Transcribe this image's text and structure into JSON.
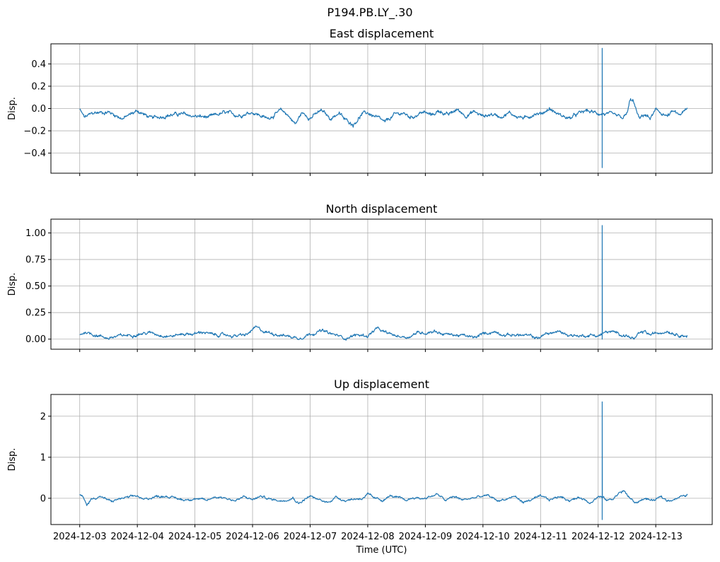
{
  "figure": {
    "suptitle": "P194.PB.LY_.30"
  },
  "chart_data": [
    {
      "type": "line",
      "title": "East displacement",
      "ylabel": "Disp.",
      "xlabel": "",
      "ylim": [
        -0.58,
        0.58
      ],
      "yticks": [
        -0.4,
        -0.2,
        0.0,
        0.2,
        0.4
      ],
      "ytick_labels": [
        "−0.4",
        "−0.2",
        "0.0",
        "0.2",
        "0.4"
      ],
      "show_xtick_labels": false,
      "grid": true,
      "series": [
        {
          "color": "#1f77b4",
          "baseline": [
            [
              0.0,
              -0.01
            ],
            [
              0.08,
              -0.08
            ],
            [
              0.25,
              -0.04
            ],
            [
              0.5,
              -0.03
            ],
            [
              0.75,
              -0.09
            ],
            [
              1.0,
              -0.02
            ],
            [
              1.25,
              -0.09
            ],
            [
              1.5,
              -0.06
            ],
            [
              1.75,
              -0.05
            ],
            [
              2.0,
              -0.07
            ],
            [
              2.25,
              -0.08
            ],
            [
              2.5,
              -0.04
            ],
            [
              2.75,
              -0.06
            ],
            [
              3.0,
              -0.03
            ],
            [
              3.25,
              -0.09
            ],
            [
              3.5,
              -0.02
            ],
            [
              3.6,
              -0.05
            ],
            [
              3.75,
              -0.14
            ],
            [
              3.85,
              -0.04
            ],
            [
              4.0,
              -0.08
            ],
            [
              4.2,
              -0.02
            ],
            [
              4.35,
              -0.09
            ],
            [
              4.5,
              -0.04
            ],
            [
              4.6,
              -0.1
            ],
            [
              4.75,
              -0.14
            ],
            [
              4.9,
              -0.05
            ],
            [
              5.0,
              -0.04
            ],
            [
              5.15,
              -0.08
            ],
            [
              5.3,
              -0.13
            ],
            [
              5.45,
              -0.06
            ],
            [
              5.6,
              -0.04
            ],
            [
              5.75,
              -0.08
            ],
            [
              5.95,
              -0.03
            ],
            [
              6.1,
              -0.06
            ],
            [
              6.25,
              -0.02
            ],
            [
              6.4,
              -0.06
            ],
            [
              6.55,
              -0.01
            ],
            [
              6.7,
              -0.06
            ],
            [
              6.85,
              -0.03
            ],
            [
              7.0,
              -0.07
            ],
            [
              7.15,
              -0.05
            ],
            [
              7.3,
              -0.07
            ],
            [
              7.45,
              -0.04
            ],
            [
              7.6,
              -0.07
            ],
            [
              7.75,
              -0.09
            ],
            [
              7.9,
              -0.04
            ],
            [
              8.0,
              -0.05
            ],
            [
              8.15,
              0.0
            ],
            [
              8.3,
              -0.05
            ],
            [
              8.5,
              -0.09
            ],
            [
              8.65,
              -0.05
            ],
            [
              8.8,
              -0.02
            ],
            [
              8.95,
              -0.04
            ],
            [
              9.15,
              -0.05
            ],
            [
              9.3,
              -0.07
            ],
            [
              9.43,
              -0.09
            ],
            [
              9.5,
              -0.05
            ],
            [
              9.55,
              0.06
            ],
            [
              9.6,
              0.08
            ],
            [
              9.66,
              -0.02
            ],
            [
              9.72,
              -0.1
            ],
            [
              9.8,
              -0.05
            ],
            [
              9.9,
              -0.09
            ],
            [
              10.0,
              -0.02
            ],
            [
              10.1,
              -0.04
            ],
            [
              10.2,
              -0.07
            ],
            [
              10.3,
              -0.03
            ],
            [
              10.4,
              -0.06
            ],
            [
              10.55,
              -0.01
            ]
          ],
          "noise": 0.018,
          "spike": {
            "x": 9.07,
            "values": [
              0.54,
              -0.53
            ]
          }
        }
      ]
    },
    {
      "type": "line",
      "title": "North displacement",
      "ylabel": "Disp.",
      "xlabel": "",
      "ylim": [
        -0.095,
        1.13
      ],
      "yticks": [
        0.0,
        0.25,
        0.5,
        0.75,
        1.0
      ],
      "ytick_labels": [
        "0.00",
        "0.25",
        "0.50",
        "0.75",
        "1.00"
      ],
      "show_xtick_labels": false,
      "grid": true,
      "series": [
        {
          "color": "#1f77b4",
          "baseline": [
            [
              0.0,
              0.04
            ],
            [
              0.1,
              0.07
            ],
            [
              0.2,
              0.05
            ],
            [
              0.35,
              0.03
            ],
            [
              0.5,
              0.01
            ],
            [
              0.7,
              0.03
            ],
            [
              0.9,
              0.04
            ],
            [
              1.0,
              0.05
            ],
            [
              1.25,
              0.06
            ],
            [
              1.4,
              0.04
            ],
            [
              1.6,
              0.03
            ],
            [
              1.8,
              0.05
            ],
            [
              2.0,
              0.05
            ],
            [
              2.15,
              0.07
            ],
            [
              2.3,
              0.04
            ],
            [
              2.5,
              0.04
            ],
            [
              2.7,
              0.03
            ],
            [
              2.9,
              0.04
            ],
            [
              3.05,
              0.11
            ],
            [
              3.2,
              0.07
            ],
            [
              3.4,
              0.05
            ],
            [
              3.6,
              0.03
            ],
            [
              3.8,
              0.01
            ],
            [
              4.0,
              0.05
            ],
            [
              4.2,
              0.08
            ],
            [
              4.35,
              0.05
            ],
            [
              4.5,
              0.03
            ],
            [
              4.6,
              0.01
            ],
            [
              4.8,
              0.04
            ],
            [
              5.0,
              0.03
            ],
            [
              5.15,
              0.1
            ],
            [
              5.3,
              0.06
            ],
            [
              5.5,
              0.03
            ],
            [
              5.7,
              0.02
            ],
            [
              5.85,
              0.06
            ],
            [
              6.0,
              0.06
            ],
            [
              6.15,
              0.08
            ],
            [
              6.3,
              0.05
            ],
            [
              6.5,
              0.04
            ],
            [
              6.7,
              0.03
            ],
            [
              6.85,
              0.01
            ],
            [
              7.0,
              0.05
            ],
            [
              7.2,
              0.07
            ],
            [
              7.4,
              0.04
            ],
            [
              7.6,
              0.04
            ],
            [
              7.8,
              0.03
            ],
            [
              7.95,
              0.01
            ],
            [
              8.1,
              0.05
            ],
            [
              8.3,
              0.07
            ],
            [
              8.5,
              0.04
            ],
            [
              8.7,
              0.03
            ],
            [
              8.9,
              0.04
            ],
            [
              9.0,
              0.03
            ],
            [
              9.15,
              0.07
            ],
            [
              9.3,
              0.06
            ],
            [
              9.45,
              0.04
            ],
            [
              9.55,
              0.02
            ],
            [
              9.62,
              0.0
            ],
            [
              9.7,
              0.04
            ],
            [
              9.8,
              0.07
            ],
            [
              9.9,
              0.04
            ],
            [
              10.05,
              0.06
            ],
            [
              10.2,
              0.08
            ],
            [
              10.35,
              0.05
            ],
            [
              10.55,
              0.03
            ]
          ],
          "noise": 0.015,
          "spike": {
            "x": 9.07,
            "values": [
              1.07,
              0.0
            ]
          }
        }
      ]
    },
    {
      "type": "line",
      "title": "Up displacement",
      "ylabel": "Disp.",
      "xlabel": "Time (UTC)",
      "ylim": [
        -0.64,
        2.53
      ],
      "yticks": [
        0,
        1,
        2
      ],
      "ytick_labels": [
        "0",
        "1",
        "2"
      ],
      "show_xtick_labels": true,
      "grid": true,
      "series": [
        {
          "color": "#1f77b4",
          "baseline": [
            [
              0.0,
              0.08
            ],
            [
              0.05,
              0.04
            ],
            [
              0.12,
              -0.17
            ],
            [
              0.2,
              -0.02
            ],
            [
              0.35,
              0.05
            ],
            [
              0.45,
              -0.02
            ],
            [
              0.55,
              -0.08
            ],
            [
              0.7,
              -0.01
            ],
            [
              0.9,
              0.03
            ],
            [
              1.0,
              0.06
            ],
            [
              1.1,
              -0.04
            ],
            [
              1.3,
              0.04
            ],
            [
              1.5,
              0.06
            ],
            [
              1.6,
              0.02
            ],
            [
              1.8,
              -0.04
            ],
            [
              2.0,
              0.0
            ],
            [
              2.2,
              -0.06
            ],
            [
              2.35,
              0.04
            ],
            [
              2.5,
              0.02
            ],
            [
              2.7,
              -0.06
            ],
            [
              2.85,
              0.03
            ],
            [
              3.0,
              -0.03
            ],
            [
              3.15,
              0.05
            ],
            [
              3.3,
              -0.02
            ],
            [
              3.5,
              -0.06
            ],
            [
              3.7,
              0.02
            ],
            [
              3.8,
              -0.12
            ],
            [
              3.9,
              -0.03
            ],
            [
              4.0,
              0.06
            ],
            [
              4.1,
              -0.02
            ],
            [
              4.3,
              -0.1
            ],
            [
              4.45,
              0.03
            ],
            [
              4.6,
              -0.05
            ],
            [
              4.75,
              -0.02
            ],
            [
              4.9,
              0.0
            ],
            [
              5.0,
              0.1
            ],
            [
              5.1,
              0.0
            ],
            [
              5.25,
              -0.05
            ],
            [
              5.4,
              0.06
            ],
            [
              5.55,
              0.0
            ],
            [
              5.65,
              -0.06
            ],
            [
              5.8,
              0.02
            ],
            [
              5.95,
              -0.01
            ],
            [
              6.05,
              0.03
            ],
            [
              6.2,
              0.1
            ],
            [
              6.35,
              -0.05
            ],
            [
              6.5,
              0.04
            ],
            [
              6.65,
              -0.04
            ],
            [
              6.8,
              0.0
            ],
            [
              6.95,
              0.04
            ],
            [
              7.1,
              0.06
            ],
            [
              7.25,
              -0.06
            ],
            [
              7.4,
              -0.02
            ],
            [
              7.55,
              0.05
            ],
            [
              7.7,
              -0.1
            ],
            [
              7.85,
              -0.03
            ],
            [
              8.0,
              0.04
            ],
            [
              8.15,
              -0.04
            ],
            [
              8.35,
              0.05
            ],
            [
              8.5,
              -0.05
            ],
            [
              8.7,
              0.02
            ],
            [
              8.85,
              -0.1
            ],
            [
              9.0,
              0.04
            ],
            [
              9.05,
              0.04
            ],
            [
              9.15,
              -0.05
            ],
            [
              9.25,
              -0.02
            ],
            [
              9.35,
              0.12
            ],
            [
              9.45,
              0.18
            ],
            [
              9.55,
              0.0
            ],
            [
              9.65,
              -0.12
            ],
            [
              9.8,
              0.0
            ],
            [
              9.95,
              -0.06
            ],
            [
              10.1,
              0.03
            ],
            [
              10.2,
              -0.06
            ],
            [
              10.35,
              0.0
            ],
            [
              10.55,
              0.08
            ]
          ],
          "noise": 0.03,
          "spike": {
            "x": 9.07,
            "values": [
              2.35,
              -0.52
            ]
          }
        }
      ],
      "xtick_labels": [
        "2024-12-03",
        "2024-12-04",
        "2024-12-05",
        "2024-12-06",
        "2024-12-07",
        "2024-12-08",
        "2024-12-09",
        "2024-12-10",
        "2024-12-11",
        "2024-12-12",
        "2024-12-13"
      ]
    }
  ]
}
